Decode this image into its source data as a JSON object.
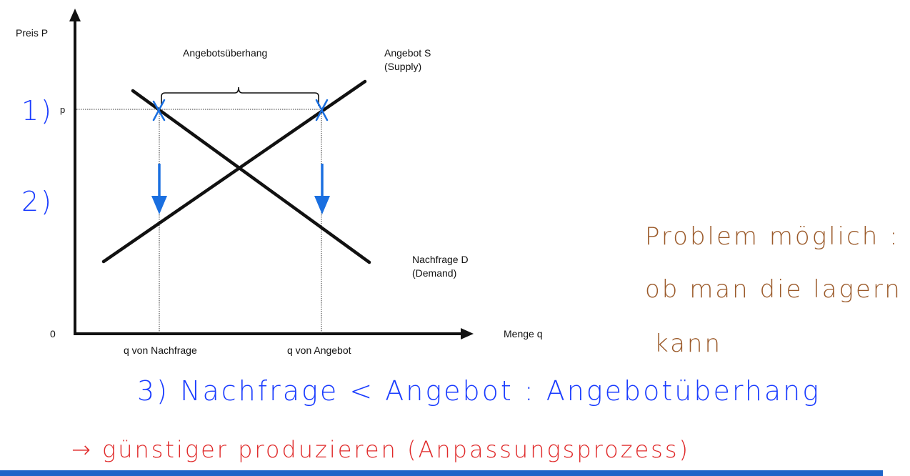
{
  "diagram": {
    "axis_y_label": "Preis P",
    "axis_x_label": "Menge q",
    "origin_label": "0",
    "price_label": "p",
    "bracket_label": "Angebotsüberhang",
    "supply_label_line1": "Angebot S",
    "supply_label_line2": "(Supply)",
    "demand_label_line1": "Nachfrage D",
    "demand_label_line2": "(Demand)",
    "q_demand_label": "q von Nachfrage",
    "q_supply_label": "q von Angebot"
  },
  "annotations": {
    "step1": "1)",
    "step2": "2)",
    "step3": "3) Nachfrage < Angebot  :  Angebotüberhang",
    "arrow_note": "→  günstiger produzieren   (Anpassungsprozess)",
    "problem_line1": "Problem möglich :",
    "problem_line2": "ob man die lagern",
    "problem_line3": "kann"
  },
  "colors": {
    "curves": "#111111",
    "marker_blue": "#1a6fe0",
    "handwriting_blue": "#1a3cff",
    "handwriting_brown": "#9b5a2a",
    "handwriting_red": "#e02a2a",
    "bottom_bar": "#1e64c8"
  }
}
